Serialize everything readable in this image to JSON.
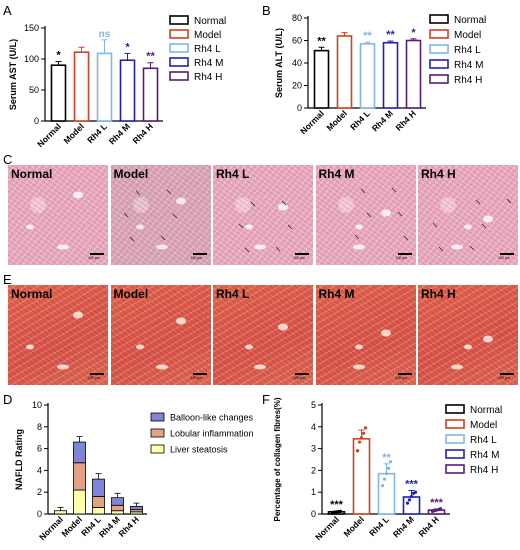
{
  "panel_letters": {
    "a": "A",
    "b": "B",
    "c": "C",
    "d": "D",
    "e": "E",
    "f": "F"
  },
  "group_colors": [
    "#000000",
    "#d63f1f",
    "#7fb7e8",
    "#1f1fc0",
    "#5a1a78"
  ],
  "chart_data": [
    {
      "type": "bar",
      "categories": [
        "Normal",
        "Model",
        "Rh4 L",
        "Rh4 M",
        "Rh4 H"
      ],
      "values": [
        90,
        111,
        109,
        98,
        85
      ],
      "errors": [
        6,
        8,
        22,
        11,
        9
      ],
      "ylabel": "Serum AST (U/L)",
      "ylim": [
        0,
        150
      ],
      "yticks": [
        0,
        50,
        100,
        150
      ],
      "significance": [
        "*",
        "",
        "ns",
        "*",
        "**"
      ],
      "legend": [
        "Normal",
        "Model",
        "Rh4 L",
        "Rh4 M",
        "Rh4 H"
      ],
      "legend_position": "right"
    },
    {
      "type": "bar",
      "categories": [
        "Normal",
        "Model",
        "Rh4 L",
        "Rh4 M",
        "Rh4 H"
      ],
      "values": [
        51,
        64,
        57,
        58,
        60
      ],
      "errors": [
        3,
        3,
        1.5,
        1.5,
        1.5
      ],
      "ylabel": "Serum ALT (U/L)",
      "ylim": [
        0,
        80
      ],
      "yticks": [
        0,
        20,
        40,
        60,
        80
      ],
      "significance": [
        "**",
        "",
        "**",
        "**",
        "*"
      ],
      "legend": [
        "Normal",
        "Model",
        "Rh4 L",
        "Rh4 M",
        "Rh4 H"
      ],
      "legend_position": "right"
    },
    {
      "type": "bar",
      "stacked": true,
      "categories": [
        "Normal",
        "Model",
        "Rh4 L",
        "Rh4 M",
        "Rh4 H"
      ],
      "series": [
        {
          "name": "Liver steatosis",
          "values": [
            0.3,
            2.2,
            0.6,
            0.3,
            0.2
          ],
          "errors": [
            0.3,
            0.6,
            0.3,
            0.2,
            0.2
          ],
          "color": "#ffffa8"
        },
        {
          "name": "Lobular inflammation",
          "values": [
            0,
            2.5,
            1.0,
            0.5,
            0.2
          ],
          "errors": [
            0,
            0.6,
            0.5,
            0.4,
            0.3
          ],
          "color": "#e2a286"
        },
        {
          "name": "Balloon-like changes",
          "values": [
            0,
            1.9,
            1.6,
            0.7,
            0.3
          ],
          "errors": [
            0,
            0.5,
            0.5,
            0.4,
            0.3
          ],
          "color": "#7e84d6"
        }
      ],
      "ylabel": "NAFLD Rating",
      "ylim": [
        0,
        10
      ],
      "yticks": [
        0,
        2,
        4,
        6,
        8,
        10
      ],
      "legend_position": "top-right"
    },
    {
      "type": "bar",
      "categories": [
        "Normal",
        "Model",
        "Rh4 L",
        "Rh4 M",
        "Rh4 H"
      ],
      "values": [
        0.1,
        3.45,
        1.85,
        0.78,
        0.18
      ],
      "errors": [
        0.03,
        0.4,
        0.45,
        0.3,
        0.05
      ],
      "points": [
        [
          0.07,
          0.08,
          0.1,
          0.11,
          0.12
        ],
        [
          2.9,
          3.3,
          3.5,
          3.7,
          3.95
        ],
        [
          1.3,
          1.6,
          1.85,
          2.1,
          2.4
        ],
        [
          0.5,
          0.65,
          0.8,
          0.95,
          1.0
        ],
        [
          0.12,
          0.15,
          0.18,
          0.2,
          0.24
        ]
      ],
      "ylabel": "Percentage of collagen fibres(%)",
      "ylim": [
        0,
        5
      ],
      "yticks": [
        0,
        1,
        2,
        3,
        4,
        5
      ],
      "significance": [
        "***",
        "",
        "**",
        "***",
        "***"
      ],
      "legend": [
        "Normal",
        "Model",
        "Rh4 L",
        "Rh4 M",
        "Rh4 H"
      ],
      "legend_position": "right"
    }
  ],
  "he_panel": {
    "labels": [
      "Normal",
      "Model",
      "Rh4 L",
      "Rh4 M",
      "Rh4 H"
    ],
    "scalebar": "100 μm",
    "stain_color": "#e8a9bd"
  },
  "sirius_panel": {
    "labels": [
      "Normal",
      "Model",
      "Rh4 L",
      "Rh4 M",
      "Rh4 H"
    ],
    "scalebar": "100 μm",
    "stain_color": "#d9554a"
  }
}
